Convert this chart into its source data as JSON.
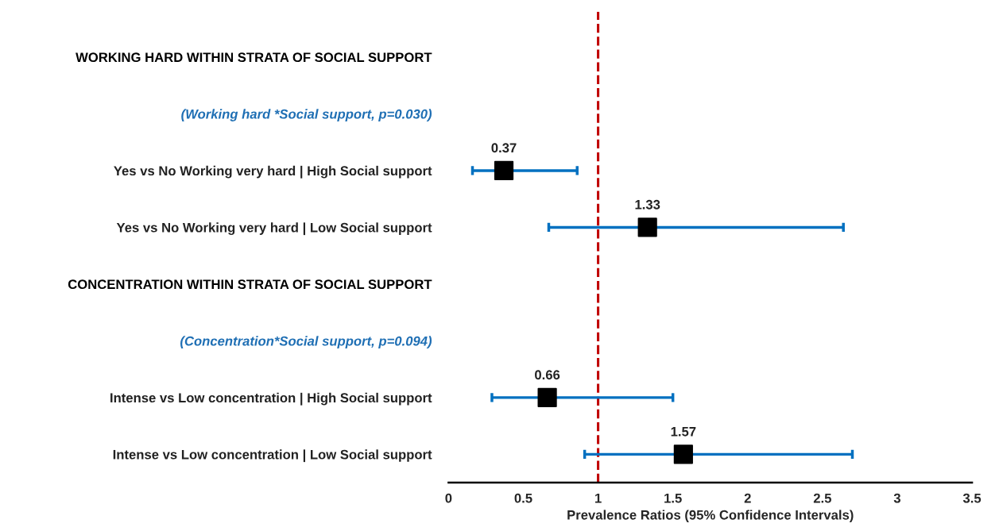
{
  "chart_data": {
    "type": "scatter",
    "categories": [
      "WORKING HARD WITHIN STRATA OF SOCIAL SUPPORT",
      "(Working hard *Social support, p=0.030)",
      "Yes vs No Working very hard | High Social support",
      "Yes vs No Working very hard | Low Social support",
      "CONCENTRATION WITHIN STRATA OF SOCIAL SUPPORT",
      "(Concentration*Social support, p=0.094)",
      "Intense vs Low concentration | High Social support",
      "Intense vs Low concentration | Low Social support"
    ],
    "orientation": "horizontal",
    "color": "#000000",
    "values": [
      null,
      null,
      0.37,
      1.33,
      null,
      null,
      0.66,
      1.57
    ],
    "errors": [
      null,
      null,
      [
        0.16,
        0.86
      ],
      [
        0.67,
        2.64
      ],
      null,
      null,
      [
        0.29,
        1.5
      ],
      [
        0.91,
        2.7
      ]
    ],
    "xlabel": "Prevalence Ratios (95% Confidence Intervals)",
    "xlim": [
      0,
      3.5
    ],
    "xticks": [
      0,
      0.5,
      1,
      1.5,
      2,
      2.5,
      3,
      3.5
    ],
    "ref_lines": [
      {
        "axis": "x",
        "value": 1,
        "color": "#c00000",
        "line_style": "dashed"
      }
    ],
    "marker": "square",
    "data_labels": true,
    "grid": false,
    "legend": false,
    "tick_labels": "x"
  }
}
